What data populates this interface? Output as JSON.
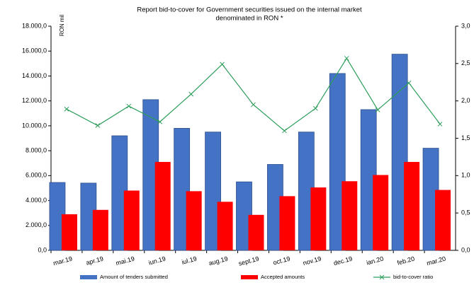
{
  "chart_data": {
    "type": "bar",
    "title": [
      "Report bid-to-cover for Government securities issued on the internal market",
      "denominated in RON *"
    ],
    "y_label": "RON mil",
    "categories": [
      "mar.19",
      "apr.19",
      "mai.19",
      "iun.19",
      "iul.19",
      "aug.19",
      "sept.19",
      "oct.19",
      "nov.19",
      "dec.19",
      "ian.20",
      "feb.20",
      "mar.20"
    ],
    "series": [
      {
        "name": "Amount of tenders submitted",
        "color": "#4472c4",
        "values": [
          5450,
          5400,
          9200,
          12100,
          9800,
          9500,
          5500,
          6900,
          9500,
          14200,
          11300,
          15750,
          8200
        ]
      },
      {
        "name": "Accepted amounts",
        "color": "#ff0000",
        "values": [
          2900,
          3250,
          4800,
          7100,
          4750,
          3900,
          2850,
          4350,
          5050,
          5550,
          6050,
          7100,
          4850
        ]
      },
      {
        "name": "bid-to-cover ratio",
        "color": "#2e9e5b",
        "axis": "y2",
        "type": "line",
        "values": [
          1.89,
          1.67,
          1.93,
          1.72,
          2.09,
          2.49,
          1.95,
          1.6,
          1.9,
          2.57,
          1.88,
          2.24,
          1.69
        ]
      }
    ],
    "ylim": [
      0,
      18000
    ],
    "yticks": [
      {
        "value": 0,
        "label": "0,0"
      },
      {
        "value": 2000,
        "label": "2.000,0"
      },
      {
        "value": 4000,
        "label": "4.000,0"
      },
      {
        "value": 6000,
        "label": "6.000,0"
      },
      {
        "value": 8000,
        "label": "8.000,0"
      },
      {
        "value": 10000,
        "label": "10.000,0"
      },
      {
        "value": 12000,
        "label": "12.000,0"
      },
      {
        "value": 14000,
        "label": "14.000,0"
      },
      {
        "value": 16000,
        "label": "16.000,0"
      },
      {
        "value": 18000,
        "label": "18.000,0"
      }
    ],
    "y2lim": [
      0,
      3
    ],
    "y2ticks": [
      {
        "value": 0,
        "label": "0,0"
      },
      {
        "value": 0.5,
        "label": "0,5"
      },
      {
        "value": 1,
        "label": "1,0"
      },
      {
        "value": 1.5,
        "label": "1,5"
      },
      {
        "value": 2,
        "label": "2,0"
      },
      {
        "value": 2.5,
        "label": "2,5"
      },
      {
        "value": 3,
        "label": "3,0"
      }
    ],
    "grid": false,
    "legend": "bottom"
  }
}
